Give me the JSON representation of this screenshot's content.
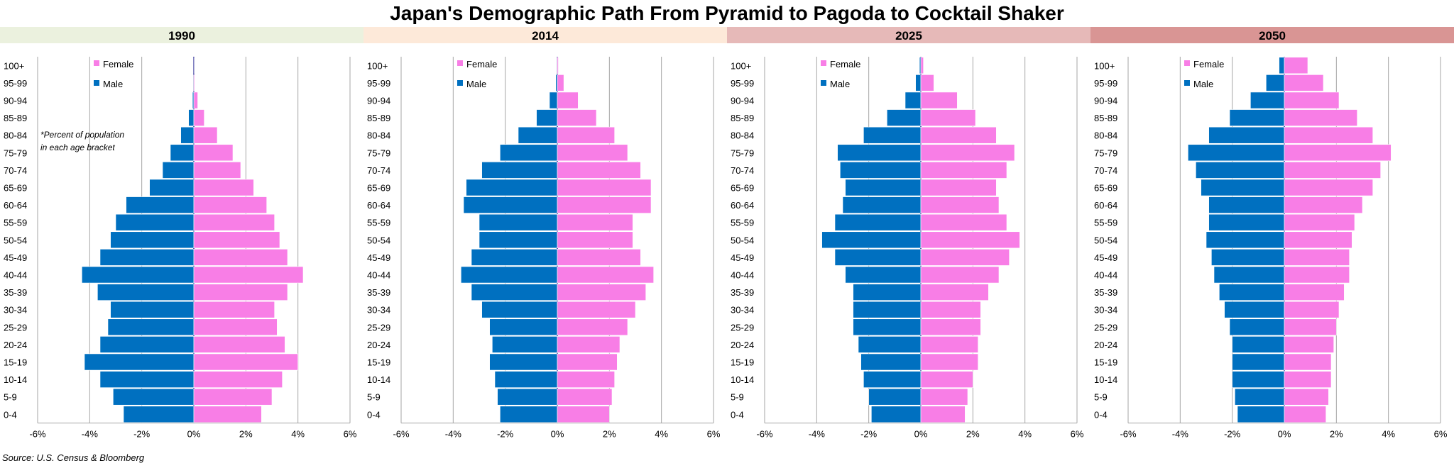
{
  "title": "Japan's Demographic Path From Pyramid to Pagoda to Cocktail Shaker",
  "source": "Source: U.S. Census & Bloomberg",
  "annotation": [
    "*Percent of population",
    "in each age bracket"
  ],
  "colors": {
    "male": "#0070C0",
    "female": "#F87EE6",
    "header_bg": [
      "#EBF1DE",
      "#FDE9D9",
      "#E6B9B8",
      "#D99594"
    ]
  },
  "chart_data": [
    {
      "type": "bar",
      "title": "1990",
      "categories": [
        "0-4",
        "5-9",
        "10-14",
        "15-19",
        "20-24",
        "25-29",
        "30-34",
        "35-39",
        "40-44",
        "45-49",
        "50-54",
        "55-59",
        "60-64",
        "65-69",
        "70-74",
        "75-79",
        "80-84",
        "85-89",
        "90-94",
        "95-99",
        "100+"
      ],
      "series": [
        {
          "name": "Male",
          "values": [
            -2.7,
            -3.1,
            -3.6,
            -4.2,
            -3.6,
            -3.3,
            -3.2,
            -3.7,
            -4.3,
            -3.6,
            -3.2,
            -3.0,
            -2.6,
            -1.7,
            -1.2,
            -0.9,
            -0.5,
            -0.2,
            -0.05,
            -0.01,
            0
          ]
        },
        {
          "name": "Female",
          "values": [
            2.6,
            3.0,
            3.4,
            4.0,
            3.5,
            3.2,
            3.1,
            3.6,
            4.2,
            3.6,
            3.3,
            3.1,
            2.8,
            2.3,
            1.8,
            1.5,
            0.9,
            0.4,
            0.15,
            0.03,
            0.005
          ]
        }
      ],
      "xlim": [
        -6,
        6
      ],
      "xticks": [
        "-6%",
        "-4%",
        "-2%",
        "0%",
        "2%",
        "4%",
        "6%"
      ],
      "legend": "top-left"
    },
    {
      "type": "bar",
      "title": "2014",
      "categories": [
        "0-4",
        "5-9",
        "10-14",
        "15-19",
        "20-24",
        "25-29",
        "30-34",
        "35-39",
        "40-44",
        "45-49",
        "50-54",
        "55-59",
        "60-64",
        "65-69",
        "70-74",
        "75-79",
        "80-84",
        "85-89",
        "90-94",
        "95-99",
        "100+"
      ],
      "series": [
        {
          "name": "Male",
          "values": [
            -2.2,
            -2.3,
            -2.4,
            -2.6,
            -2.5,
            -2.6,
            -2.9,
            -3.3,
            -3.7,
            -3.3,
            -3.0,
            -3.0,
            -3.6,
            -3.5,
            -2.9,
            -2.2,
            -1.5,
            -0.8,
            -0.3,
            -0.06,
            -0.01
          ]
        },
        {
          "name": "Female",
          "values": [
            2.0,
            2.1,
            2.2,
            2.3,
            2.4,
            2.7,
            3.0,
            3.4,
            3.7,
            3.2,
            2.9,
            2.9,
            3.6,
            3.6,
            3.2,
            2.7,
            2.2,
            1.5,
            0.8,
            0.25,
            0.04
          ]
        }
      ],
      "xlim": [
        -6,
        6
      ],
      "xticks": [
        "-6%",
        "-4%",
        "-2%",
        "0%",
        "2%",
        "4%",
        "6%"
      ],
      "legend": "top-left"
    },
    {
      "type": "bar",
      "title": "2025",
      "categories": [
        "0-4",
        "5-9",
        "10-14",
        "15-19",
        "20-24",
        "25-29",
        "30-34",
        "35-39",
        "40-44",
        "45-49",
        "50-54",
        "55-59",
        "60-64",
        "65-69",
        "70-74",
        "75-79",
        "80-84",
        "85-89",
        "90-94",
        "95-99",
        "100+"
      ],
      "series": [
        {
          "name": "Male",
          "values": [
            -1.9,
            -2.0,
            -2.2,
            -2.3,
            -2.4,
            -2.6,
            -2.6,
            -2.6,
            -2.9,
            -3.3,
            -3.8,
            -3.3,
            -3.0,
            -2.9,
            -3.1,
            -3.2,
            -2.2,
            -1.3,
            -0.6,
            -0.2,
            -0.05
          ]
        },
        {
          "name": "Female",
          "values": [
            1.7,
            1.8,
            2.0,
            2.2,
            2.2,
            2.3,
            2.3,
            2.6,
            3.0,
            3.4,
            3.8,
            3.3,
            3.0,
            2.9,
            3.3,
            3.6,
            2.9,
            2.1,
            1.4,
            0.5,
            0.1
          ]
        }
      ],
      "xlim": [
        -6,
        6
      ],
      "xticks": [
        "-6%",
        "-4%",
        "-2%",
        "0%",
        "2%",
        "4%",
        "6%"
      ],
      "legend": "top-left"
    },
    {
      "type": "bar",
      "title": "2050",
      "categories": [
        "0-4",
        "5-9",
        "10-14",
        "15-19",
        "20-24",
        "25-29",
        "30-34",
        "35-39",
        "40-44",
        "45-49",
        "50-54",
        "55-59",
        "60-64",
        "65-69",
        "70-74",
        "75-79",
        "80-84",
        "85-89",
        "90-94",
        "95-99",
        "100+"
      ],
      "series": [
        {
          "name": "Male",
          "values": [
            -1.8,
            -1.9,
            -2.0,
            -2.0,
            -2.0,
            -2.1,
            -2.3,
            -2.5,
            -2.7,
            -2.8,
            -3.0,
            -2.9,
            -2.9,
            -3.2,
            -3.4,
            -3.7,
            -2.9,
            -2.1,
            -1.3,
            -0.7,
            -0.2
          ]
        },
        {
          "name": "Female",
          "values": [
            1.6,
            1.7,
            1.8,
            1.8,
            1.9,
            2.0,
            2.1,
            2.3,
            2.5,
            2.5,
            2.6,
            2.7,
            3.0,
            3.4,
            3.7,
            4.1,
            3.4,
            2.8,
            2.1,
            1.5,
            0.9
          ]
        }
      ],
      "xlim": [
        -6,
        6
      ],
      "xticks": [
        "-6%",
        "-4%",
        "-2%",
        "0%",
        "2%",
        "4%",
        "6%"
      ],
      "legend": "top-left"
    }
  ]
}
